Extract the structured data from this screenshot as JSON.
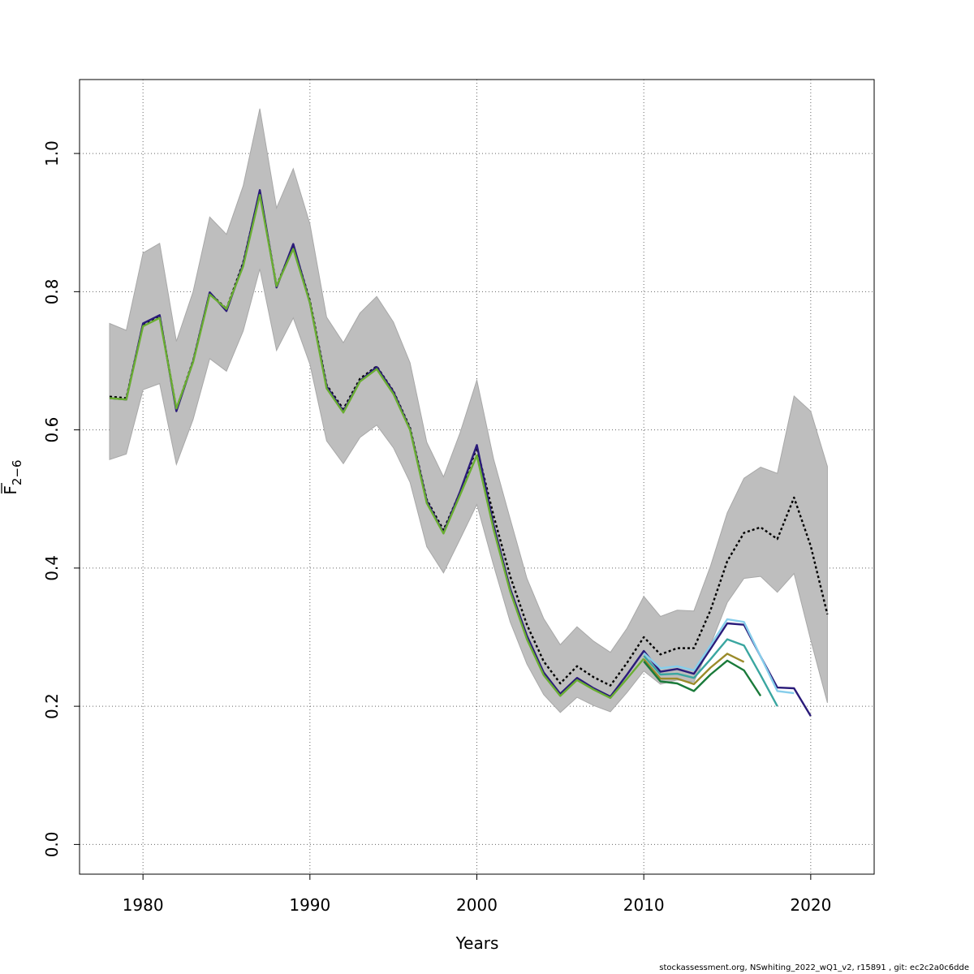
{
  "chart_data": {
    "type": "line",
    "xlabel": "Years",
    "ylabel": "F",
    "ylabel_subscript": "2−6",
    "xlim": [
      1976.2,
      2023.8
    ],
    "ylim": [
      -0.043,
      1.107
    ],
    "x_ticks": [
      1980,
      1990,
      2000,
      2010,
      2020
    ],
    "x_tick_labels": [
      "1980",
      "1990",
      "2000",
      "2010",
      "2020"
    ],
    "y_ticks": [
      0.0,
      0.2,
      0.4,
      0.6,
      0.8,
      1.0
    ],
    "y_tick_labels": [
      "0.0",
      "0.2",
      "0.4",
      "0.6",
      "0.8",
      "1.0"
    ],
    "grid": true,
    "confidence_band": {
      "color": "#bebebe",
      "x": [
        1978,
        1979,
        1980,
        1981,
        1982,
        1983,
        1984,
        1985,
        1986,
        1987,
        1988,
        1989,
        1990,
        1991,
        1992,
        1993,
        1994,
        1995,
        1996,
        1997,
        1998,
        1999,
        2000,
        2001,
        2002,
        2003,
        2004,
        2005,
        2006,
        2007,
        2008,
        2009,
        2010,
        2011,
        2012,
        2013,
        2014,
        2015,
        2016,
        2017,
        2018,
        2019,
        2020,
        2021
      ],
      "lower": [
        0.557,
        0.565,
        0.658,
        0.667,
        0.55,
        0.615,
        0.703,
        0.685,
        0.743,
        0.833,
        0.715,
        0.762,
        0.695,
        0.584,
        0.551,
        0.589,
        0.607,
        0.574,
        0.524,
        0.431,
        0.393,
        0.442,
        0.492,
        0.404,
        0.322,
        0.261,
        0.217,
        0.191,
        0.213,
        0.201,
        0.192,
        0.22,
        0.251,
        0.232,
        0.238,
        0.235,
        0.289,
        0.35,
        0.385,
        0.388,
        0.365,
        0.392,
        0.296,
        0.205
      ],
      "upper": [
        0.754,
        0.744,
        0.856,
        0.87,
        0.728,
        0.8,
        0.908,
        0.883,
        0.953,
        1.065,
        0.921,
        0.978,
        0.898,
        0.763,
        0.726,
        0.769,
        0.793,
        0.756,
        0.697,
        0.582,
        0.532,
        0.596,
        0.672,
        0.558,
        0.471,
        0.385,
        0.327,
        0.289,
        0.315,
        0.294,
        0.278,
        0.313,
        0.359,
        0.33,
        0.339,
        0.338,
        0.403,
        0.48,
        0.53,
        0.546,
        0.537,
        0.649,
        0.627,
        0.547
      ]
    },
    "series": [
      {
        "color": "#000000",
        "style": "dashed",
        "x": [
          1978,
          1979,
          1980,
          1981,
          1982,
          1983,
          1984,
          1985,
          1986,
          1987,
          1988,
          1989,
          1990,
          1991,
          1992,
          1993,
          1994,
          1995,
          1996,
          1997,
          1998,
          1999,
          2000,
          2001,
          2002,
          2003,
          2004,
          2005,
          2006,
          2007,
          2008,
          2009,
          2010,
          2011,
          2012,
          2013,
          2014,
          2015,
          2016,
          2017,
          2018,
          2019,
          2020,
          2021
        ],
        "values": [
          0.648,
          0.646,
          0.753,
          0.765,
          0.63,
          0.7,
          0.798,
          0.775,
          0.842,
          0.945,
          0.808,
          0.867,
          0.787,
          0.665,
          0.63,
          0.674,
          0.692,
          0.656,
          0.603,
          0.499,
          0.455,
          0.51,
          0.574,
          0.476,
          0.388,
          0.318,
          0.265,
          0.233,
          0.258,
          0.242,
          0.23,
          0.263,
          0.3,
          0.275,
          0.284,
          0.284,
          0.339,
          0.41,
          0.451,
          0.459,
          0.442,
          0.502,
          0.432,
          0.333
        ]
      },
      {
        "color": "#2a1b7a",
        "style": "solid",
        "x": [
          1978,
          1979,
          1980,
          1981,
          1982,
          1983,
          1984,
          1985,
          1986,
          1987,
          1988,
          1989,
          1990,
          1991,
          1992,
          1993,
          1994,
          1995,
          1996,
          1997,
          1998,
          1999,
          2000,
          2001,
          2002,
          2003,
          2004,
          2005,
          2006,
          2007,
          2008,
          2009,
          2010,
          2011,
          2012,
          2013,
          2014,
          2015,
          2016,
          2017,
          2018,
          2019,
          2020
        ],
        "values": [
          0.646,
          0.644,
          0.754,
          0.766,
          0.627,
          0.699,
          0.799,
          0.772,
          0.84,
          0.947,
          0.806,
          0.869,
          0.784,
          0.663,
          0.627,
          0.671,
          0.691,
          0.655,
          0.601,
          0.497,
          0.451,
          0.511,
          0.578,
          0.462,
          0.37,
          0.302,
          0.249,
          0.218,
          0.241,
          0.226,
          0.214,
          0.246,
          0.28,
          0.25,
          0.254,
          0.247,
          0.283,
          0.32,
          0.318,
          0.272,
          0.227,
          0.226,
          0.186
        ]
      },
      {
        "color": "#87ceeb",
        "style": "solid",
        "x": [
          2010,
          2011,
          2012,
          2013,
          2014,
          2015,
          2016,
          2017,
          2018,
          2019
        ],
        "values": [
          0.277,
          0.255,
          0.258,
          0.252,
          0.288,
          0.326,
          0.322,
          0.272,
          0.222,
          0.219
        ]
      },
      {
        "color": "#3aa6a0",
        "style": "solid",
        "x": [
          2010,
          2011,
          2012,
          2013,
          2014,
          2015,
          2016,
          2017,
          2018
        ],
        "values": [
          0.273,
          0.246,
          0.247,
          0.241,
          0.268,
          0.297,
          0.288,
          0.245,
          0.2
        ]
      },
      {
        "color": "#9b8b2a",
        "style": "solid",
        "x": [
          2010,
          2011,
          2012,
          2013,
          2014,
          2015,
          2016
        ],
        "values": [
          0.268,
          0.24,
          0.24,
          0.232,
          0.256,
          0.276,
          0.264
        ]
      },
      {
        "color": "#1a7a3a",
        "style": "solid",
        "x": [
          2010,
          2011,
          2012,
          2013,
          2014,
          2015,
          2016,
          2017
        ],
        "values": [
          0.265,
          0.236,
          0.233,
          0.222,
          0.246,
          0.266,
          0.252,
          0.215
        ]
      },
      {
        "color": "#6aae32",
        "style": "solid",
        "x": [
          1978,
          1979,
          1980,
          1981,
          1982,
          1983,
          1984,
          1985,
          1986,
          1987,
          1988,
          1989,
          1990,
          1991,
          1992,
          1993,
          1994,
          1995,
          1996,
          1997,
          1998,
          1999,
          2000,
          2001,
          2002,
          2003,
          2004,
          2005,
          2006,
          2007,
          2008,
          2009,
          2010
        ],
        "values": [
          0.646,
          0.644,
          0.75,
          0.762,
          0.631,
          0.698,
          0.796,
          0.775,
          0.837,
          0.94,
          0.808,
          0.862,
          0.784,
          0.66,
          0.625,
          0.67,
          0.688,
          0.652,
          0.6,
          0.494,
          0.45,
          0.506,
          0.563,
          0.456,
          0.366,
          0.297,
          0.245,
          0.215,
          0.238,
          0.224,
          0.212,
          0.24,
          0.269
        ]
      }
    ]
  },
  "footer": {
    "text": "stockassessment.org, NSwhiting_2022_wQ1_v2, r15891 , git: ec2c2a0c6dde"
  }
}
